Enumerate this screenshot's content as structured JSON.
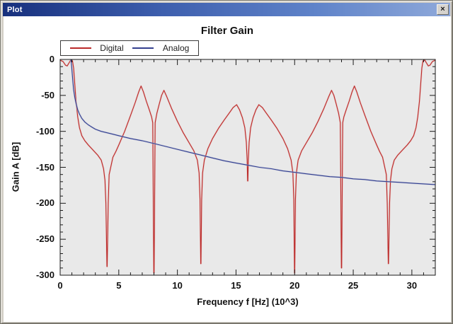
{
  "window": {
    "title": "Plot",
    "close_glyph": "×"
  },
  "chart_data": {
    "type": "line",
    "title": "Filter Gain",
    "xlabel": "Frequency f [Hz] (10^3)",
    "ylabel": "Gain A [dB]",
    "xlim": [
      0,
      32
    ],
    "ylim": [
      -300,
      0
    ],
    "x_major_ticks": [
      0,
      5,
      10,
      15,
      20,
      25,
      30
    ],
    "x_minor_step": 1,
    "y_major_ticks": [
      0,
      -50,
      -100,
      -150,
      -200,
      -250,
      -300
    ],
    "y_minor_step": 10,
    "grid": false,
    "legend_position": "top-left",
    "plot_bg": "#e9e9e9",
    "frame_color": "#1a1a1a",
    "series": [
      {
        "name": "Digital",
        "color": "#bb2a2a",
        "halo": "#e8b2ae",
        "points": [
          [
            0,
            -1
          ],
          [
            0.25,
            -3
          ],
          [
            0.45,
            -8
          ],
          [
            0.6,
            -9
          ],
          [
            0.75,
            -5
          ],
          [
            0.9,
            -1
          ],
          [
            1.05,
            -2
          ],
          [
            1.15,
            -12
          ],
          [
            1.25,
            -35
          ],
          [
            1.35,
            -58
          ],
          [
            1.5,
            -80
          ],
          [
            1.65,
            -95
          ],
          [
            1.85,
            -106
          ],
          [
            2.1,
            -113
          ],
          [
            2.4,
            -119
          ],
          [
            2.8,
            -126
          ],
          [
            3.2,
            -133
          ],
          [
            3.5,
            -140
          ],
          [
            3.7,
            -152
          ],
          [
            3.82,
            -168
          ],
          [
            3.9,
            -200
          ],
          [
            3.99,
            -288
          ],
          [
            4.01,
            -288
          ],
          [
            4.1,
            -200
          ],
          [
            4.18,
            -160
          ],
          [
            4.5,
            -136
          ],
          [
            4.75,
            -128
          ],
          [
            5,
            -119
          ],
          [
            5.5,
            -100
          ],
          [
            6,
            -78
          ],
          [
            6.4,
            -60
          ],
          [
            6.7,
            -45
          ],
          [
            6.9,
            -37
          ],
          [
            7.1,
            -45
          ],
          [
            7.35,
            -58
          ],
          [
            7.6,
            -70
          ],
          [
            7.8,
            -80
          ],
          [
            7.9,
            -88
          ],
          [
            7.99,
            -297
          ],
          [
            8.01,
            -297
          ],
          [
            8.1,
            -88
          ],
          [
            8.25,
            -75
          ],
          [
            8.45,
            -62
          ],
          [
            8.65,
            -50
          ],
          [
            8.85,
            -43
          ],
          [
            9.1,
            -52
          ],
          [
            9.5,
            -68
          ],
          [
            10,
            -86
          ],
          [
            10.5,
            -102
          ],
          [
            11,
            -116
          ],
          [
            11.4,
            -127
          ],
          [
            11.7,
            -140
          ],
          [
            11.85,
            -158
          ],
          [
            11.93,
            -195
          ],
          [
            11.99,
            -284
          ],
          [
            12.01,
            -284
          ],
          [
            12.07,
            -195
          ],
          [
            12.15,
            -158
          ],
          [
            12.3,
            -140
          ],
          [
            12.6,
            -124
          ],
          [
            13,
            -110
          ],
          [
            13.5,
            -96
          ],
          [
            14,
            -84
          ],
          [
            14.45,
            -74
          ],
          [
            14.75,
            -67
          ],
          [
            15.05,
            -63
          ],
          [
            15.3,
            -70
          ],
          [
            15.55,
            -81
          ],
          [
            15.75,
            -95
          ],
          [
            15.88,
            -115
          ],
          [
            15.95,
            -140
          ],
          [
            15.99,
            -169
          ],
          [
            16.01,
            -169
          ],
          [
            16.05,
            -140
          ],
          [
            16.12,
            -115
          ],
          [
            16.25,
            -95
          ],
          [
            16.45,
            -81
          ],
          [
            16.7,
            -70
          ],
          [
            16.95,
            -63
          ],
          [
            17.25,
            -67
          ],
          [
            17.55,
            -74
          ],
          [
            18,
            -84
          ],
          [
            18.5,
            -96
          ],
          [
            19,
            -110
          ],
          [
            19.4,
            -124
          ],
          [
            19.7,
            -140
          ],
          [
            19.85,
            -158
          ],
          [
            19.93,
            -195
          ],
          [
            19.99,
            -297
          ],
          [
            20.01,
            -297
          ],
          [
            20.07,
            -195
          ],
          [
            20.15,
            -158
          ],
          [
            20.3,
            -140
          ],
          [
            20.6,
            -127
          ],
          [
            21,
            -116
          ],
          [
            21.5,
            -102
          ],
          [
            22,
            -86
          ],
          [
            22.5,
            -68
          ],
          [
            22.9,
            -52
          ],
          [
            23.15,
            -43
          ],
          [
            23.35,
            -50
          ],
          [
            23.55,
            -62
          ],
          [
            23.75,
            -75
          ],
          [
            23.9,
            -88
          ],
          [
            23.99,
            -290
          ],
          [
            24.01,
            -290
          ],
          [
            24.1,
            -88
          ],
          [
            24.2,
            -80
          ],
          [
            24.4,
            -70
          ],
          [
            24.65,
            -58
          ],
          [
            24.9,
            -45
          ],
          [
            25.1,
            -37
          ],
          [
            25.3,
            -45
          ],
          [
            25.6,
            -60
          ],
          [
            26,
            -78
          ],
          [
            26.5,
            -100
          ],
          [
            27,
            -119
          ],
          [
            27.25,
            -128
          ],
          [
            27.5,
            -136
          ],
          [
            27.82,
            -160
          ],
          [
            27.9,
            -200
          ],
          [
            27.99,
            -284
          ],
          [
            28.01,
            -284
          ],
          [
            28.1,
            -200
          ],
          [
            28.18,
            -168
          ],
          [
            28.3,
            -152
          ],
          [
            28.5,
            -140
          ],
          [
            28.8,
            -133
          ],
          [
            29.2,
            -126
          ],
          [
            29.6,
            -119
          ],
          [
            29.9,
            -113
          ],
          [
            30.15,
            -106
          ],
          [
            30.35,
            -95
          ],
          [
            30.5,
            -80
          ],
          [
            30.65,
            -58
          ],
          [
            30.75,
            -35
          ],
          [
            30.85,
            -12
          ],
          [
            30.95,
            -2
          ],
          [
            31.1,
            -1
          ],
          [
            31.25,
            -5
          ],
          [
            31.4,
            -9
          ],
          [
            31.55,
            -8
          ],
          [
            31.75,
            -3
          ],
          [
            32,
            -1
          ]
        ]
      },
      {
        "name": "Analog",
        "color": "#34408f",
        "halo": "#aeb4d6",
        "points": [
          [
            0.92,
            0
          ],
          [
            0.97,
            -8
          ],
          [
            1.02,
            -18
          ],
          [
            1.08,
            -30
          ],
          [
            1.15,
            -42
          ],
          [
            1.25,
            -53
          ],
          [
            1.35,
            -61
          ],
          [
            1.5,
            -70
          ],
          [
            1.65,
            -76
          ],
          [
            1.85,
            -82
          ],
          [
            2.1,
            -87
          ],
          [
            2.4,
            -91
          ],
          [
            2.7,
            -94
          ],
          [
            3,
            -97
          ],
          [
            3.5,
            -100
          ],
          [
            4,
            -102
          ],
          [
            4.5,
            -104
          ],
          [
            5,
            -106
          ],
          [
            5.5,
            -108
          ],
          [
            6,
            -110
          ],
          [
            7,
            -113
          ],
          [
            8,
            -117
          ],
          [
            9,
            -121
          ],
          [
            10,
            -125
          ],
          [
            11,
            -129
          ],
          [
            12,
            -133
          ],
          [
            13,
            -137
          ],
          [
            14,
            -141
          ],
          [
            15,
            -144
          ],
          [
            16,
            -147
          ],
          [
            17,
            -150
          ],
          [
            18,
            -152
          ],
          [
            19,
            -155
          ],
          [
            20,
            -157
          ],
          [
            21,
            -159
          ],
          [
            22,
            -161
          ],
          [
            23,
            -163
          ],
          [
            24,
            -164
          ],
          [
            25,
            -166
          ],
          [
            26,
            -167
          ],
          [
            27,
            -169
          ],
          [
            28,
            -170
          ],
          [
            29,
            -171
          ],
          [
            30,
            -172
          ],
          [
            31,
            -173
          ],
          [
            32,
            -174
          ]
        ]
      }
    ]
  }
}
